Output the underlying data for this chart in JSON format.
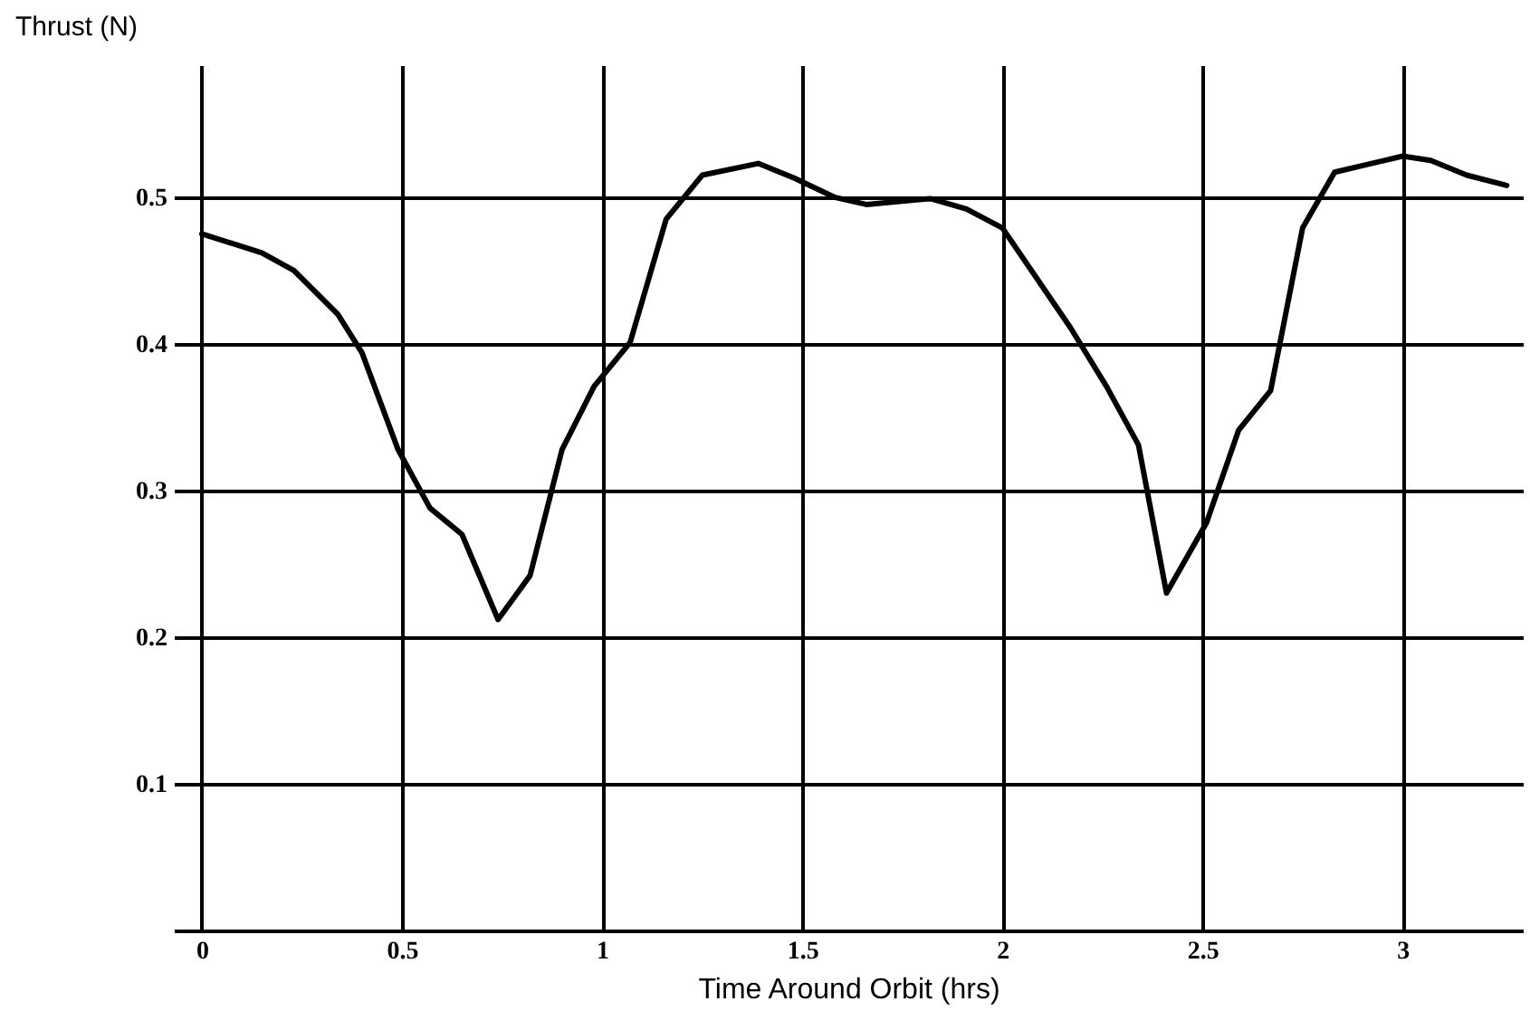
{
  "chart_data": {
    "type": "line",
    "xlabel": "Time Around Orbit (hrs)",
    "ylabel": "Thrust (N)",
    "xlim": [
      -0.07,
      3.3
    ],
    "ylim": [
      0,
      0.59
    ],
    "xticks": [
      0,
      0.5,
      1,
      1.5,
      2,
      2.5,
      3
    ],
    "yticks": [
      0.1,
      0.2,
      0.3,
      0.4,
      0.5
    ],
    "grid": true,
    "marker": "none",
    "line_style": "solid",
    "series": [
      {
        "color": "#000000",
        "x": [
          0,
          0.15,
          0.23,
          0.34,
          0.4,
          0.49,
          0.57,
          0.65,
          0.74,
          0.82,
          0.9,
          0.98,
          1.07,
          1.16,
          1.25,
          1.39,
          1.48,
          1.58,
          1.66,
          1.82,
          1.91,
          2.0,
          2.17,
          2.26,
          2.34,
          2.41,
          2.51,
          2.59,
          2.67,
          2.75,
          2.83,
          3.0,
          3.07,
          3.16,
          3.26
        ],
        "values": [
          0.475,
          0.462,
          0.45,
          0.42,
          0.394,
          0.328,
          0.288,
          0.27,
          0.212,
          0.242,
          0.328,
          0.371,
          0.401,
          0.485,
          0.515,
          0.523,
          0.513,
          0.5,
          0.495,
          0.499,
          0.492,
          0.479,
          0.411,
          0.371,
          0.331,
          0.23,
          0.278,
          0.341,
          0.368,
          0.479,
          0.517,
          0.528,
          0.525,
          0.515,
          0.508
        ]
      }
    ]
  }
}
